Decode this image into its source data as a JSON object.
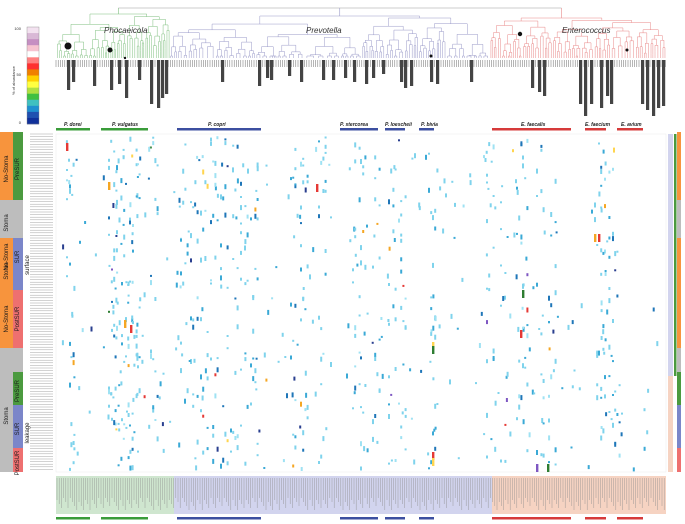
{
  "figure": {
    "clades": [
      {
        "name": "Phocaeicola",
        "color": "#7fbf7f"
      },
      {
        "name": "Prevotella",
        "color": "#9a9ac8"
      },
      {
        "name": "Enterococcus",
        "color": "#e88888"
      }
    ],
    "species": [
      {
        "name": "P. dorei",
        "color": "#3a9c3a"
      },
      {
        "name": "P. vulgatus",
        "color": "#3a9c3a"
      },
      {
        "name": "P. copri",
        "color": "#3c4fa0"
      },
      {
        "name": "P. stercorea",
        "color": "#3c4fa0"
      },
      {
        "name": "P. loescheii",
        "color": "#3c4fa0"
      },
      {
        "name": "P. bivia",
        "color": "#3c4fa0"
      },
      {
        "name": "E. faecalis",
        "color": "#d63a3a"
      },
      {
        "name": "E. faecium",
        "color": "#d63a3a"
      },
      {
        "name": "E. avium",
        "color": "#d63a3a"
      }
    ],
    "colorbar": {
      "title": "% of abundance",
      "ticks": [
        "100",
        "50",
        "0"
      ],
      "colors": [
        "#f3e2f0",
        "#d9b8d6",
        "#c58fc2",
        "#f6c3d0",
        "#ffffff",
        "#ff8080",
        "#ff3030",
        "#f08000",
        "#ffd000",
        "#ffff40",
        "#b0e040",
        "#40c040",
        "#40c0c0",
        "#2090d0",
        "#2050b0",
        "#10309a"
      ]
    },
    "row_annotations": [
      {
        "label": "No-Stoma",
        "color": "#f7943d"
      },
      {
        "label": "PreSUR",
        "color": "#4b9a3f"
      },
      {
        "label": "Stoma",
        "color": "#bdbdbd"
      },
      {
        "label": "No-Stoma",
        "color": "#f7943d"
      },
      {
        "label": "SUR",
        "color": "#7b86c9"
      },
      {
        "label": "surface",
        "color": "#7b86c9"
      },
      {
        "label": "Stoma",
        "color": "#bdbdbd"
      },
      {
        "label": "No-Stoma",
        "color": "#f7943d"
      },
      {
        "label": "PostSUR",
        "color": "#ee7070"
      },
      {
        "label": "PreSUR",
        "color": "#4b9a3f"
      },
      {
        "label": "Stoma",
        "color": "#bdbdbd"
      },
      {
        "label": "SUR",
        "color": "#7b86c9"
      },
      {
        "label": "leakage",
        "color": "#7b86c9"
      },
      {
        "label": "PostSUR",
        "color": "#ee7070"
      }
    ],
    "bottom_panel_colors": [
      "#cfe6cf",
      "#d2d4ee",
      "#f6d3c2"
    ],
    "heat_colors": [
      "#7fd3ec",
      "#3aa9d6",
      "#1f76b8",
      "#2a3f8f",
      "#9fe2f3",
      "#f5a623",
      "#e53935",
      "#7e57c2",
      "#2e7d32",
      "#ffd54f"
    ]
  }
}
